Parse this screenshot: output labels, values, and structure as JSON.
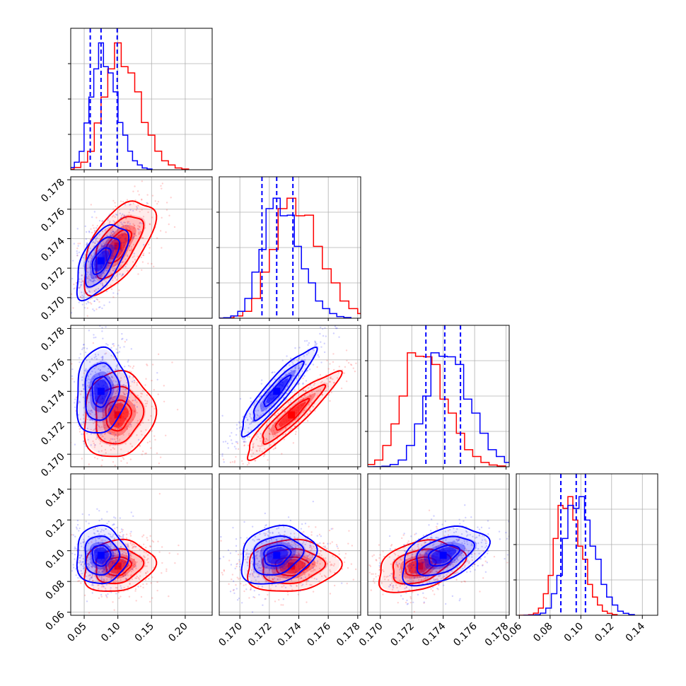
{
  "colors": {
    "red": "#ff0000",
    "blue": "#0000ff",
    "grid": "#b0b0b0",
    "frame": "#000000"
  },
  "chart_data": {
    "type": "corner",
    "variables": [
      {
        "range": [
          0.03,
          0.24
        ],
        "ticks": [
          0.05,
          0.1,
          0.15,
          0.2
        ],
        "tick_labels": [
          "0.05",
          "0.10",
          "0.15",
          "0.20"
        ]
      },
      {
        "range": [
          0.1686,
          0.1782
        ],
        "ticks": [
          0.17,
          0.172,
          0.174,
          0.176,
          0.178
        ],
        "tick_labels": [
          "0.170",
          "0.172",
          "0.174",
          "0.176",
          "0.178"
        ]
      },
      {
        "range": [
          0.1692,
          0.1782
        ],
        "ticks": [
          0.17,
          0.172,
          0.174,
          0.176,
          0.178
        ],
        "tick_labels": [
          "0.170",
          "0.172",
          "0.174",
          "0.176",
          "0.178"
        ]
      },
      {
        "range": [
          0.058,
          0.15
        ],
        "ticks": [
          0.06,
          0.08,
          0.1,
          0.12,
          0.14
        ],
        "tick_labels": [
          "0.06",
          "0.08",
          "0.10",
          "0.12",
          "0.14"
        ]
      }
    ],
    "series": [
      {
        "color": "red",
        "means": [
          0.1,
          0.1735,
          0.1725,
          0.09
        ],
        "sds": [
          0.025,
          0.0015,
          0.0013,
          0.008
        ],
        "correlations": [
          [
            0,
            1,
            0.6
          ],
          [
            0,
            2,
            0.1
          ],
          [
            0,
            3,
            0.15
          ],
          [
            1,
            2,
            0.92
          ],
          [
            1,
            3,
            0.1
          ],
          [
            2,
            3,
            0.35
          ]
        ],
        "quantile_lines": []
      },
      {
        "color": "blue",
        "means": [
          0.075,
          0.1725,
          0.174,
          0.097
        ],
        "sds": [
          0.018,
          0.0012,
          0.0013,
          0.009
        ],
        "correlations": [
          [
            0,
            1,
            0.6
          ],
          [
            0,
            2,
            0.1
          ],
          [
            0,
            3,
            0.0
          ],
          [
            1,
            2,
            0.92
          ],
          [
            1,
            3,
            0.2
          ],
          [
            2,
            3,
            0.45
          ]
        ],
        "quantile_lines": [
          [
            0.059,
            0.075,
            0.099
          ],
          [
            0.1715,
            0.1725,
            0.1736
          ],
          [
            0.1729,
            0.1741,
            0.1751
          ],
          [
            0.087,
            0.097,
            0.103
          ]
        ]
      }
    ],
    "grid": true,
    "contour_levels": [
      0.39,
      0.86,
      0.99
    ],
    "histogram_bins": 20
  }
}
